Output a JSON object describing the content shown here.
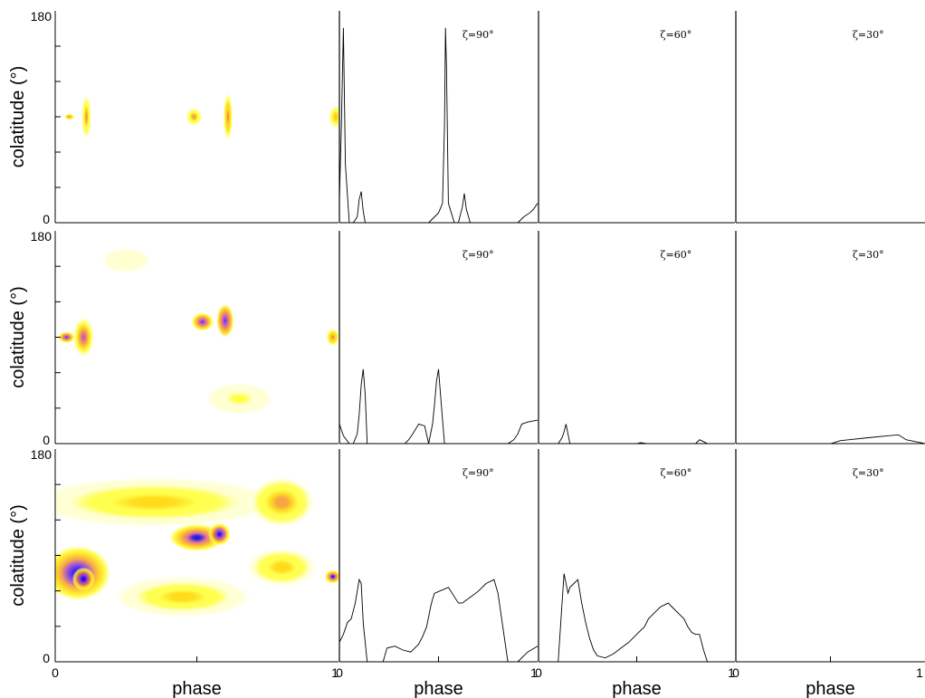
{
  "chart_data": {
    "type": "heatmap",
    "layout": "3x4 grid: first column intensity maps, remaining columns light-curve profiles",
    "axes": {
      "map": {
        "xlabel": "phase",
        "ylabel": "colatitude (°)",
        "xlim": [
          0,
          1
        ],
        "ylim": [
          0,
          180
        ],
        "xticklabels": [
          "0",
          "1"
        ],
        "yticklabels": [
          "0",
          "180"
        ]
      },
      "profile": {
        "xlabel": "phase",
        "xlim": [
          0,
          1
        ],
        "xticklabels": [
          "0",
          "1"
        ]
      }
    },
    "colormap": [
      "#ffffff",
      "#ffffcc",
      "#ffff33",
      "#ffd700",
      "#f59a2a",
      "#e0607a",
      "#a040c0",
      "#3010ff",
      "#000070"
    ],
    "grid": false,
    "rows": [
      {
        "map_blobs": [
          {
            "phase": 0.11,
            "colatitude": 90,
            "phase_width": 0.018,
            "colat_width": 20,
            "intensity": 0.45
          },
          {
            "phase": 0.05,
            "colatitude": 90,
            "phase_width": 0.02,
            "colat_width": 3,
            "intensity": 0.5
          },
          {
            "phase": 0.49,
            "colatitude": 90,
            "phase_width": 0.03,
            "colat_width": 8,
            "intensity": 0.45
          },
          {
            "phase": 0.61,
            "colatitude": 90,
            "phase_width": 0.018,
            "colat_width": 22,
            "intensity": 0.5
          },
          {
            "phase": 0.99,
            "colatitude": 90,
            "phase_width": 0.025,
            "colat_width": 10,
            "intensity": 0.4
          }
        ],
        "profiles": [
          {
            "zeta": "ζ=90°",
            "x": [
              0,
              0.01,
              0.02,
              0.03,
              0.05,
              0.07,
              0.09,
              0.1,
              0.11,
              0.12,
              0.13,
              0.15,
              0.3,
              0.4,
              0.45,
              0.48,
              0.5,
              0.52,
              0.53,
              0.535,
              0.54,
              0.55,
              0.58,
              0.6,
              0.62,
              0.63,
              0.64,
              0.66,
              0.9,
              0.93,
              0.96,
              0.98,
              1.0
            ],
            "y": [
              0.12,
              0.5,
              1.0,
              0.3,
              0,
              0,
              0.03,
              0.12,
              0.16,
              0.06,
              0,
              0,
              0,
              0,
              0,
              0.03,
              0.05,
              0.1,
              0.5,
              1.0,
              0.8,
              0.1,
              0,
              0,
              0.08,
              0.15,
              0.07,
              0,
              0,
              0.03,
              0.05,
              0.07,
              0.1
            ]
          },
          {
            "zeta": "ζ=60°",
            "x": [
              0,
              1
            ],
            "y": [
              0,
              0
            ]
          },
          {
            "zeta": "ζ=30°",
            "x": [
              0,
              1
            ],
            "y": [
              0,
              0
            ]
          }
        ]
      },
      {
        "map_blobs": [
          {
            "phase": 0.25,
            "colatitude": 155,
            "phase_width": 0.13,
            "colat_width": 16,
            "intensity": 0.12
          },
          {
            "phase": 0.1,
            "colatitude": 90,
            "phase_width": 0.04,
            "colat_width": 18,
            "intensity": 0.7
          },
          {
            "phase": 0.04,
            "colatitude": 90,
            "phase_width": 0.03,
            "colat_width": 5,
            "intensity": 0.85
          },
          {
            "phase": 0.52,
            "colatitude": 103,
            "phase_width": 0.04,
            "colat_width": 8,
            "intensity": 0.8
          },
          {
            "phase": 0.6,
            "colatitude": 104,
            "phase_width": 0.035,
            "colat_width": 16,
            "intensity": 0.75
          },
          {
            "phase": 0.98,
            "colatitude": 90,
            "phase_width": 0.025,
            "colat_width": 8,
            "intensity": 0.5
          },
          {
            "phase": 0.65,
            "colatitude": 38,
            "phase_width": 0.14,
            "colat_width": 16,
            "intensity": 0.15
          }
        ],
        "profiles": [
          {
            "zeta": "ζ=90°",
            "x": [
              0,
              0.02,
              0.05,
              0.07,
              0.09,
              0.1,
              0.11,
              0.12,
              0.13,
              0.14,
              0.2,
              0.3,
              0.33,
              0.35,
              0.37,
              0.4,
              0.43,
              0.45,
              0.47,
              0.48,
              0.49,
              0.5,
              0.51,
              0.53,
              0.6,
              0.85,
              0.88,
              0.9,
              0.92,
              0.95,
              1.0
            ],
            "y": [
              0.1,
              0.04,
              0,
              0,
              0.05,
              0.15,
              0.3,
              0.38,
              0.25,
              0,
              0,
              0,
              0,
              0.02,
              0.05,
              0.1,
              0.09,
              0,
              0.1,
              0.2,
              0.32,
              0.38,
              0.25,
              0,
              0,
              0,
              0.02,
              0.05,
              0.1,
              0.11,
              0.12
            ]
          },
          {
            "zeta": "ζ=60°",
            "x": [
              0,
              0.1,
              0.12,
              0.13,
              0.14,
              0.15,
              0.16,
              0.5,
              0.52,
              0.55,
              0.8,
              0.82,
              0.84,
              0.86,
              1.0
            ],
            "y": [
              0,
              0,
              0.03,
              0.06,
              0.1,
              0.05,
              0,
              0,
              0.005,
              0,
              0,
              0.02,
              0.01,
              0,
              0
            ]
          },
          {
            "zeta": "ζ=30°",
            "x": [
              0,
              0.5,
              0.52,
              0.55,
              0.6,
              0.7,
              0.8,
              0.86,
              0.9,
              1.0
            ],
            "y": [
              0,
              0,
              0.005,
              0.015,
              0.02,
              0.03,
              0.04,
              0.045,
              0.02,
              0
            ]
          }
        ]
      },
      {
        "map_blobs": [
          {
            "phase": 0.35,
            "colatitude": 135,
            "phase_width": 0.45,
            "colat_width": 22,
            "intensity": 0.35
          },
          {
            "phase": 0.5,
            "colatitude": 105,
            "phase_width": 0.1,
            "colat_width": 12,
            "intensity": 0.9
          },
          {
            "phase": 0.58,
            "colatitude": 108,
            "phase_width": 0.04,
            "colat_width": 10,
            "intensity": 1.0
          },
          {
            "phase": 0.8,
            "colatitude": 135,
            "phase_width": 0.12,
            "colat_width": 22,
            "intensity": 0.45
          },
          {
            "phase": 0.08,
            "colatitude": 75,
            "phase_width": 0.12,
            "colat_width": 24,
            "intensity": 0.95
          },
          {
            "phase": 0.1,
            "colatitude": 70,
            "phase_width": 0.04,
            "colat_width": 10,
            "intensity": 1.0
          },
          {
            "phase": 0.45,
            "colatitude": 55,
            "phase_width": 0.25,
            "colat_width": 18,
            "intensity": 0.35
          },
          {
            "phase": 0.8,
            "colatitude": 80,
            "phase_width": 0.15,
            "colat_width": 20,
            "intensity": 0.3
          },
          {
            "phase": 0.98,
            "colatitude": 72,
            "phase_width": 0.03,
            "colat_width": 6,
            "intensity": 0.9
          }
        ],
        "profiles": [
          {
            "zeta": "ζ=90°",
            "x": [
              0,
              0.02,
              0.04,
              0.06,
              0.07,
              0.08,
              0.09,
              0.1,
              0.11,
              0.12,
              0.14,
              0.15,
              0.22,
              0.24,
              0.28,
              0.32,
              0.36,
              0.38,
              0.4,
              0.42,
              0.44,
              0.45,
              0.46,
              0.47,
              0.48,
              0.55,
              0.6,
              0.62,
              0.66,
              0.7,
              0.74,
              0.78,
              0.8,
              0.85,
              0.9,
              0.95,
              1.0
            ],
            "y": [
              0.1,
              0.14,
              0.2,
              0.22,
              0.26,
              0.3,
              0.36,
              0.42,
              0.4,
              0.2,
              0,
              0,
              0,
              0.07,
              0.08,
              0.06,
              0.05,
              0.07,
              0.09,
              0.13,
              0.18,
              0.23,
              0.28,
              0.32,
              0.35,
              0.38,
              0.3,
              0.3,
              0.33,
              0.36,
              0.4,
              0.42,
              0.35,
              0,
              0,
              0.05,
              0.08
            ]
          },
          {
            "zeta": "ζ=60°",
            "x": [
              0,
              0.1,
              0.12,
              0.13,
              0.14,
              0.15,
              0.16,
              0.18,
              0.2,
              0.22,
              0.24,
              0.26,
              0.28,
              0.3,
              0.34,
              0.38,
              0.42,
              0.46,
              0.5,
              0.54,
              0.56,
              0.58,
              0.6,
              0.62,
              0.64,
              0.66,
              0.68,
              0.7,
              0.72,
              0.74,
              0.76,
              0.78,
              0.8,
              0.82,
              0.84,
              0.86,
              0.88,
              1.0
            ],
            "y": [
              0,
              0,
              0.3,
              0.45,
              0.4,
              0.35,
              0.38,
              0.4,
              0.42,
              0.3,
              0.2,
              0.12,
              0.06,
              0.03,
              0.02,
              0.04,
              0.07,
              0.1,
              0.14,
              0.18,
              0.22,
              0.24,
              0.26,
              0.28,
              0.29,
              0.3,
              0.28,
              0.26,
              0.24,
              0.22,
              0.18,
              0.15,
              0.14,
              0.14,
              0.06,
              0,
              0,
              0
            ]
          },
          {
            "zeta": "ζ=30°",
            "x": [
              0,
              1
            ],
            "y": [
              0,
              0
            ]
          }
        ]
      }
    ]
  }
}
